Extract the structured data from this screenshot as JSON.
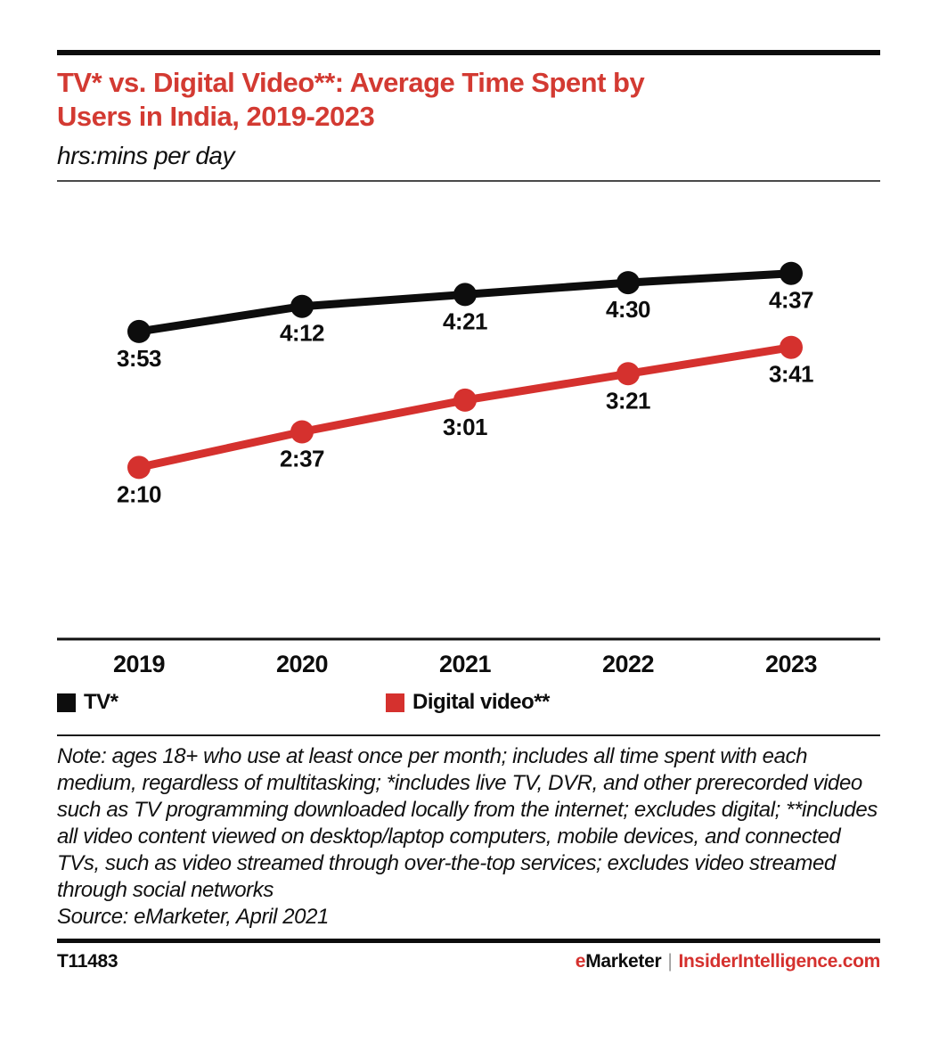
{
  "header": {
    "title_line1": "TV* vs. Digital Video**: Average Time Spent by",
    "title_line2": "Users in India, 2019-2023",
    "subtitle": "hrs:mins per day"
  },
  "chart_data": {
    "type": "line",
    "title": "TV* vs. Digital Video**: Average Time Spent by Users in India, 2019-2023",
    "unit": "hrs:mins per day",
    "categories": [
      "2019",
      "2020",
      "2021",
      "2022",
      "2023"
    ],
    "series": [
      {
        "name": "TV*",
        "color": "#0d0d0d",
        "labels": [
          "3:53",
          "4:12",
          "4:21",
          "4:30",
          "4:37"
        ],
        "values_minutes": [
          233,
          252,
          261,
          270,
          277
        ]
      },
      {
        "name": "Digital video**",
        "color": "#d5312e",
        "labels": [
          "2:10",
          "2:37",
          "3:01",
          "3:21",
          "3:41"
        ],
        "values_minutes": [
          130,
          157,
          181,
          201,
          221
        ]
      }
    ],
    "ylim_minutes": [
      0,
      345
    ],
    "grid": false,
    "legend_position": "bottom",
    "data_labels": true
  },
  "note": {
    "text": "Note: ages 18+ who use at least once per month; includes all time spent with each medium, regardless of multitasking; *includes live TV, DVR, and other prerecorded video such as TV programming downloaded locally from the internet; excludes digital; **includes all video content viewed on desktop/laptop computers, mobile devices, and connected TVs, such as video streamed through over-the-top services; excludes video streamed through social networks",
    "source": "Source: eMarketer, April 2021"
  },
  "footer": {
    "chart_id": "T11483",
    "brand_e": "e",
    "brand_rest": "Marketer",
    "separator": "|",
    "site": "InsiderIntelligence.com"
  },
  "colors": {
    "title_red": "#d33a32",
    "brand_red": "#d5312e",
    "black": "#0d0d0d",
    "separator_gray": "#9b9b9b"
  }
}
